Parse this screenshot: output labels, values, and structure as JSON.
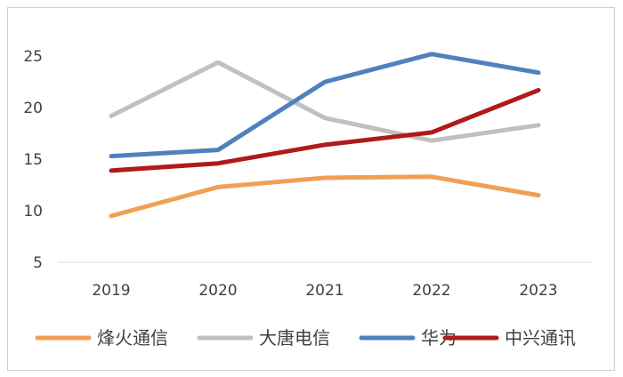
{
  "chart_data": {
    "type": "line",
    "x": [
      "2019",
      "2020",
      "2021",
      "2022",
      "2023"
    ],
    "yticks": [
      5,
      10,
      15,
      20,
      25
    ],
    "ylim": [
      5,
      27.6
    ],
    "grid": false,
    "legend_position": "bottom",
    "series": [
      {
        "name": "烽火通信",
        "color": "#f0a055",
        "values": [
          9.5,
          12.3,
          13.2,
          13.3,
          11.5
        ]
      },
      {
        "name": "大唐电信",
        "color": "#c0c0c0",
        "values": [
          19.2,
          24.4,
          19.0,
          16.8,
          18.3
        ]
      },
      {
        "name": "华为",
        "color": "#4f81bd",
        "values": [
          15.3,
          15.9,
          22.5,
          25.2,
          23.4
        ]
      },
      {
        "name": "中兴通讯",
        "color": "#b01a1a",
        "values": [
          13.9,
          14.6,
          16.4,
          17.6,
          21.7
        ]
      }
    ]
  }
}
